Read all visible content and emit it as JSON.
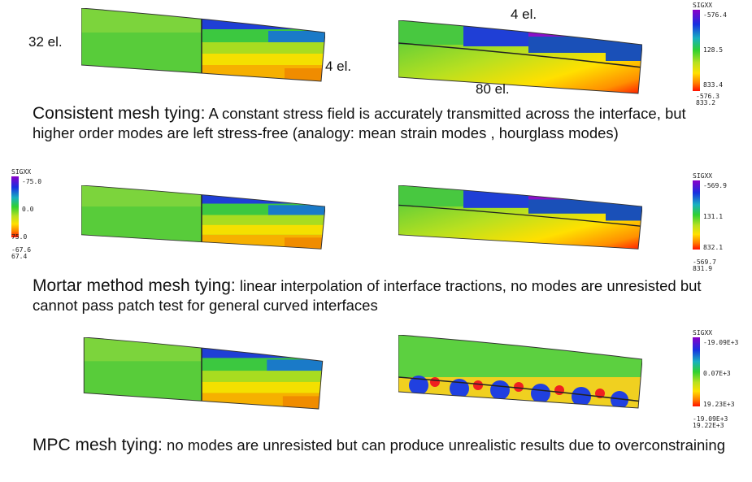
{
  "annotations": {
    "left_elements": "32 el.",
    "top_elements": "4 el.",
    "right_elements": "4 el.",
    "bottom_elements": "80 el."
  },
  "sections": [
    {
      "title": "Consistent mesh tying:",
      "text": " A constant stress field is accurately transmitted across the interface, but higher order modes are left stress-free (analogy: mean strain modes , hourglass modes)"
    },
    {
      "title": "Mortar method mesh tying:",
      "text": " linear interpolation of interface tractions, no modes are unresisted but cannot pass patch test for general curved interfaces"
    },
    {
      "title": "MPC mesh tying:",
      "text": " no modes are unresisted but can produce unrealistic results due to overconstraining"
    }
  ],
  "legends": [
    {
      "title": "SIGXX",
      "top": "-576.4",
      "middle": "128.5",
      "bottom": "833.4",
      "min": "-576.3",
      "max": "833.2"
    },
    {
      "title": "SIGXX",
      "top": "-75.0",
      "middle": "0.0",
      "bottom": "75.0",
      "min": "-67.6",
      "max": "67.4"
    },
    {
      "title": "SIGXX",
      "top": "-569.9",
      "middle": "131.1",
      "bottom": "832.1",
      "min": "-569.7",
      "max": "831.9"
    },
    {
      "title": "SIGXX",
      "top": "-19.09E+3",
      "middle": "0.07E+3",
      "bottom": "19.23E+3",
      "min": "-19.09E+3",
      "max": "19.22E+3"
    }
  ]
}
